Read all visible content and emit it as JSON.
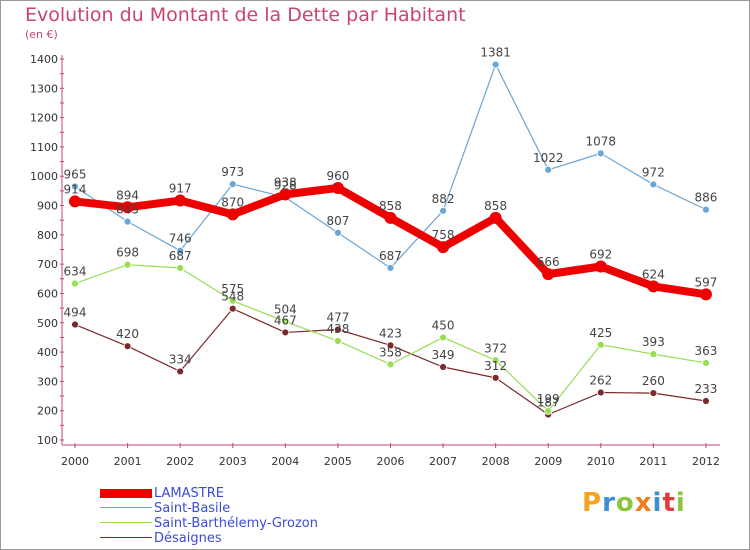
{
  "chart_data": {
    "type": "line",
    "title": "Evolution du Montant de la Dette par Habitant",
    "subtitle": "(en €)",
    "xlabel": "",
    "ylabel": "",
    "categories": [
      "2000",
      "2001",
      "2002",
      "2003",
      "2004",
      "2005",
      "2006",
      "2007",
      "2008",
      "2009",
      "2010",
      "2011",
      "2012"
    ],
    "ylim": [
      100,
      1400
    ],
    "yticks": [
      100,
      200,
      300,
      400,
      500,
      600,
      700,
      800,
      900,
      1000,
      1100,
      1200,
      1300,
      1400
    ],
    "grid": false,
    "legend_position": "bottom-left",
    "series": [
      {
        "name": "LAMASTRE",
        "color": "#ee0000",
        "values": [
          914,
          894,
          917,
          870,
          938,
          960,
          858,
          758,
          858,
          666,
          692,
          624,
          597
        ],
        "labels": [
          "914",
          "894",
          "917",
          "870",
          "938",
          "960",
          "858",
          "758",
          "858",
          "666",
          "692",
          "624",
          "597"
        ]
      },
      {
        "name": "Saint-Basile",
        "color": "#6aa6d6",
        "values": [
          965,
          845,
          746,
          973,
          928,
          807,
          687,
          882,
          1381,
          1022,
          1078,
          972,
          886
        ],
        "labels": [
          "965",
          "845",
          "746",
          "973",
          "928",
          "807",
          "687",
          "882",
          "1381",
          "1022",
          "1078",
          "972",
          "886"
        ]
      },
      {
        "name": "Saint-Barthélemy-Grozon",
        "color": "#99dd55",
        "values": [
          634,
          698,
          687,
          575,
          504,
          438,
          358,
          450,
          372,
          199,
          425,
          393,
          363
        ],
        "labels": [
          "634",
          "698",
          "687",
          "575",
          "504",
          "438",
          "358",
          "450",
          "372",
          "199",
          "425",
          "393",
          "363"
        ]
      },
      {
        "name": "Désaignes",
        "color": "#7a2a2a",
        "values": [
          494,
          420,
          334,
          548,
          467,
          477,
          423,
          349,
          312,
          187,
          262,
          260,
          233
        ],
        "labels": [
          "494",
          "420",
          "334",
          "548",
          "467",
          "477",
          "423",
          "349",
          "312",
          "187",
          "262",
          "260",
          "233"
        ]
      }
    ]
  },
  "logo": {
    "letters": [
      "P",
      "r",
      "o",
      "x",
      "i",
      "t",
      "i"
    ],
    "colors": [
      "#f4a21f",
      "#3c8fd6",
      "#8cc63e",
      "#f07c1c",
      "#3c8fd6",
      "#e03c3c",
      "#8cc63e"
    ]
  }
}
